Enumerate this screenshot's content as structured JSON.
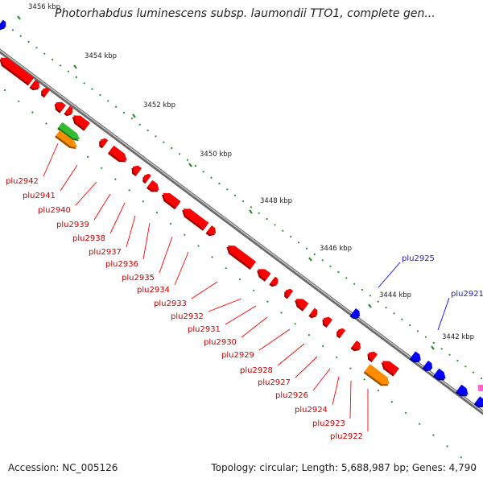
{
  "title": "Photorhabdus luminescens subsp. laumondii TTO1, complete gen...",
  "footer": {
    "accession": "Accession: NC_005126",
    "summary": "Topology: circular; Length: 5,688,987 bp; Genes: 4,790"
  },
  "colors": {
    "reverse_strand": "#ff0000",
    "forward_strand": "#0000ff",
    "rna": "#ff8c00",
    "highlight": "#33bb33",
    "backbone": "#999999",
    "tick": "#2a8a2a"
  },
  "ticks": [
    {
      "label": "3456 kbp"
    },
    {
      "label": "3454 kbp"
    },
    {
      "label": "3452 kbp"
    },
    {
      "label": "3450 kbp"
    },
    {
      "label": "3448 kbp"
    },
    {
      "label": "3446 kbp"
    },
    {
      "label": "3444 kbp"
    },
    {
      "label": "3442 kbp"
    }
  ],
  "genes_reverse": [
    "plu2942",
    "plu2941",
    "plu2940",
    "plu2939",
    "plu2938",
    "plu2937",
    "plu2936",
    "plu2935",
    "plu2934",
    "plu2933",
    "plu2932",
    "plu2931",
    "plu2930",
    "plu2929",
    "plu2928",
    "plu2927",
    "plu2926",
    "plu2924",
    "plu2923",
    "plu2922"
  ],
  "genes_forward": [
    "plu2925",
    "plu2921"
  ]
}
